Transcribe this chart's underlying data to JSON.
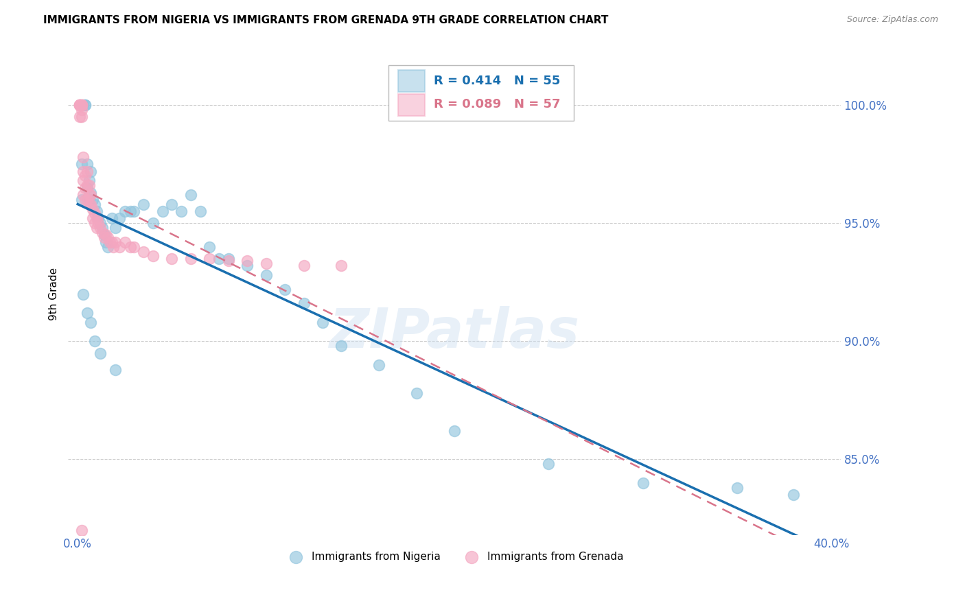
{
  "title": "IMMIGRANTS FROM NIGERIA VS IMMIGRANTS FROM GRENADA 9TH GRADE CORRELATION CHART",
  "source": "Source: ZipAtlas.com",
  "ylabel": "9th Grade",
  "xlim": [
    -0.005,
    0.405
  ],
  "ylim": [
    0.818,
    1.022
  ],
  "yticks": [
    0.85,
    0.9,
    0.95,
    1.0
  ],
  "ytick_labels": [
    "85.0%",
    "90.0%",
    "95.0%",
    "100.0%"
  ],
  "xtick_positions": [
    0.0,
    0.1,
    0.2,
    0.3,
    0.4
  ],
  "xtick_labels": [
    "0.0%",
    "",
    "",
    "",
    "40.0%"
  ],
  "nigeria_color": "#92c5de",
  "grenada_color": "#f4a6c0",
  "nigeria_line_color": "#1a6faf",
  "grenada_line_color": "#d9748a",
  "R_nigeria": 0.414,
  "N_nigeria": 55,
  "R_grenada": 0.089,
  "N_grenada": 57,
  "watermark": "ZIPatlas",
  "nigeria_x": [
    0.002,
    0.002,
    0.003,
    0.004,
    0.004,
    0.005,
    0.005,
    0.006,
    0.006,
    0.007,
    0.007,
    0.008,
    0.009,
    0.01,
    0.011,
    0.012,
    0.013,
    0.014,
    0.015,
    0.016,
    0.018,
    0.02,
    0.022,
    0.025,
    0.028,
    0.03,
    0.035,
    0.04,
    0.045,
    0.05,
    0.055,
    0.06,
    0.065,
    0.07,
    0.075,
    0.08,
    0.09,
    0.1,
    0.11,
    0.12,
    0.13,
    0.14,
    0.16,
    0.18,
    0.2,
    0.25,
    0.3,
    0.35,
    0.38,
    0.003,
    0.005,
    0.007,
    0.009,
    0.012,
    0.02
  ],
  "nigeria_y": [
    0.96,
    0.975,
    1.0,
    1.0,
    1.0,
    0.975,
    0.965,
    0.96,
    0.968,
    0.963,
    0.972,
    0.96,
    0.958,
    0.955,
    0.952,
    0.95,
    0.948,
    0.945,
    0.942,
    0.94,
    0.952,
    0.948,
    0.952,
    0.955,
    0.955,
    0.955,
    0.958,
    0.95,
    0.955,
    0.958,
    0.955,
    0.962,
    0.955,
    0.94,
    0.935,
    0.935,
    0.932,
    0.928,
    0.922,
    0.916,
    0.908,
    0.898,
    0.89,
    0.878,
    0.862,
    0.848,
    0.84,
    0.838,
    0.835,
    0.92,
    0.912,
    0.908,
    0.9,
    0.895,
    0.888
  ],
  "grenada_x": [
    0.001,
    0.001,
    0.001,
    0.001,
    0.001,
    0.001,
    0.002,
    0.002,
    0.002,
    0.002,
    0.002,
    0.003,
    0.003,
    0.003,
    0.003,
    0.004,
    0.004,
    0.004,
    0.005,
    0.005,
    0.005,
    0.006,
    0.006,
    0.006,
    0.007,
    0.007,
    0.008,
    0.008,
    0.009,
    0.009,
    0.01,
    0.01,
    0.011,
    0.012,
    0.013,
    0.014,
    0.015,
    0.016,
    0.017,
    0.018,
    0.019,
    0.02,
    0.022,
    0.025,
    0.028,
    0.03,
    0.035,
    0.04,
    0.05,
    0.06,
    0.07,
    0.08,
    0.09,
    0.1,
    0.12,
    0.14,
    0.002
  ],
  "grenada_y": [
    1.0,
    1.0,
    1.0,
    1.0,
    1.0,
    0.995,
    1.0,
    1.0,
    1.0,
    0.998,
    0.995,
    0.978,
    0.972,
    0.968,
    0.962,
    0.97,
    0.965,
    0.96,
    0.972,
    0.966,
    0.96,
    0.966,
    0.962,
    0.958,
    0.962,
    0.958,
    0.956,
    0.952,
    0.954,
    0.95,
    0.952,
    0.948,
    0.95,
    0.948,
    0.946,
    0.944,
    0.945,
    0.944,
    0.942,
    0.942,
    0.94,
    0.942,
    0.94,
    0.942,
    0.94,
    0.94,
    0.938,
    0.936,
    0.935,
    0.935,
    0.935,
    0.934,
    0.934,
    0.933,
    0.932,
    0.932,
    0.82
  ]
}
